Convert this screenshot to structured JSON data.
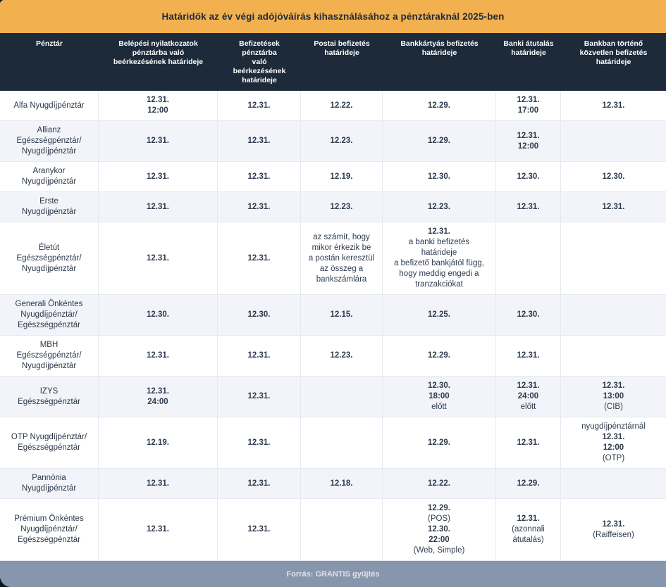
{
  "chart_data": {
    "type": "table",
    "title": "Határidők az év végi adójóváírás kihasználásához a pénztáraknál 2025-ben",
    "columns": [
      "Pénztár",
      "Belépési nyilatkozatok\npénztárba való\nbeérkezésének határideje",
      "Befizetések\npénztárba\nvaló\nbeérkezésének\nhatárideje",
      "Postai befizetés\nhatárideje",
      "Bankkártyás befizetés\nhatárideje",
      "Banki átutalás\nhatárideje",
      "Bankban történő\nközvetlen befizetés\nhatárideje"
    ],
    "rows": [
      {
        "fund": "Alfa Nyugdíjpénztár",
        "values": [
          "12.31.\n12:00",
          "12.31.",
          "12.22.",
          "12.29.",
          "12.31.\n17:00",
          "12.31."
        ]
      },
      {
        "fund": "Allianz\nEgészségpénztár/\nNyugdíjpénztár",
        "values": [
          "12.31.",
          "12.31.",
          "12.23.",
          "12.29.",
          "12.31.\n12:00",
          ""
        ]
      },
      {
        "fund": "Aranykor\nNyugdíjpénztár",
        "values": [
          "12.31.",
          "12.31.",
          "12.19.",
          "12.30.",
          "12.30.",
          "12.30."
        ]
      },
      {
        "fund": "Erste\nNyugdíjpénztár",
        "values": [
          "12.31.",
          "12.31.",
          "12.23.",
          "12.23.",
          "12.31.",
          "12.31."
        ]
      },
      {
        "fund": "Életút\nEgészségpénztár/\nNyugdíjpénztár",
        "values": [
          "12.31.",
          "12.31.",
          "az számít, hogy\nmikor érkezik be\na postán keresztül\naz összeg a\nbankszámlára",
          "12.31.\na banki befizetés\nhatárideje\na befizető bankjától függ,\nhogy meddig engedi a\ntranzakciókat",
          "",
          ""
        ]
      },
      {
        "fund": "Generali Önkéntes\nNyugdíjpénztár/\nEgészségpénztár",
        "values": [
          "12.30.",
          "12.30.",
          "12.15.",
          "12.25.",
          "12.30.",
          ""
        ]
      },
      {
        "fund": "MBH\nEgészségpénztár/\nNyugdíjpénztár",
        "values": [
          "12.31.",
          "12.31.",
          "12.23.",
          "12.29.",
          "12.31.",
          ""
        ]
      },
      {
        "fund": "IZYS\nEgészségpénztár",
        "values": [
          "12.31.\n24:00",
          "12.31.",
          "",
          "12.30.\n18:00\nelőtt",
          "12.31.\n24:00\nelőtt",
          "12.31.\n13:00\n(CIB)"
        ]
      },
      {
        "fund": "OTP Nyugdíjpénztár/\nEgészségpénztár",
        "values": [
          "12.19.",
          "12.31.",
          "",
          "12.29.",
          "12.31.",
          "nyugdíjpénztárnál\n12.31.\n12:00\n(OTP)"
        ]
      },
      {
        "fund": "Pannónia\nNyugdíjpénztár",
        "values": [
          "12.31.",
          "12.31.",
          "12.18.",
          "12.22.",
          "12.29.",
          ""
        ]
      },
      {
        "fund": "Prémium Önkéntes\nNyugdíjpénztár/\nEgészségpénztár",
        "values": [
          "12.31.",
          "12.31.",
          "",
          "12.29.\n(POS)\n12.30.\n22:00\n(Web, Simple)",
          "12.31.\n(azonnali\nátutalás)",
          "12.31.\n(Raiffeisen)"
        ]
      }
    ],
    "source": "Forrás: GRANTIS gyűjtés"
  },
  "colors": {
    "title_bg": "#F3B04F",
    "title_text": "#1E2B3A",
    "header_bg": "#1C2A39",
    "header_text": "#FFFFFF",
    "row_bg": "#FFFFFF",
    "row_alt_bg": "#F2F4F9",
    "cell_text": "#2E3B4E",
    "border": "#E6E9F1",
    "footer_bg": "#8796AD",
    "footer_text": "#DDE3EC",
    "page_outside_bg": "#0D151E"
  }
}
